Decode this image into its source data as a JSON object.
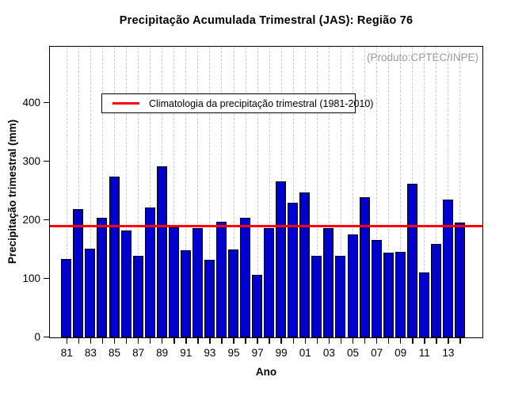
{
  "title": "Precipitação Acumulada Trimestral (JAS): Região 76",
  "watermark": "(Produto:CPTEC/INPE)",
  "chart_data": {
    "type": "bar",
    "title": "Precipitação Acumulada Trimestral (JAS): Região 76",
    "xlabel": "Ano",
    "ylabel": "Precipitação trimestral (mm)",
    "categories": [
      "81",
      "82",
      "83",
      "84",
      "85",
      "86",
      "87",
      "88",
      "89",
      "90",
      "91",
      "92",
      "93",
      "94",
      "95",
      "96",
      "97",
      "98",
      "99",
      "00",
      "01",
      "02",
      "03",
      "04",
      "05",
      "06",
      "07",
      "08",
      "09",
      "10",
      "11",
      "12",
      "13",
      "14"
    ],
    "values": [
      134,
      219,
      151,
      204,
      275,
      183,
      140,
      222,
      292,
      188,
      149,
      186,
      133,
      198,
      150,
      204,
      107,
      186,
      267,
      230,
      248,
      139,
      186,
      140,
      176,
      239,
      167,
      145,
      146,
      263,
      111,
      160,
      235,
      196
    ],
    "first_year": 1981,
    "ylim": [
      0,
      495
    ],
    "yticks": [
      0,
      100,
      200,
      300,
      400
    ],
    "x_tick_label_step": 2,
    "grid": "vertical-dashed",
    "gridline_color": "#c9c9c9",
    "bar_color": "#0000CD",
    "bar_border_color": "#000000",
    "legend_position": "top-left",
    "climatology_line": {
      "value": 189,
      "color": "#FF0000",
      "label": "Climatologia da precipitação trimestral (1981-2010)"
    }
  }
}
